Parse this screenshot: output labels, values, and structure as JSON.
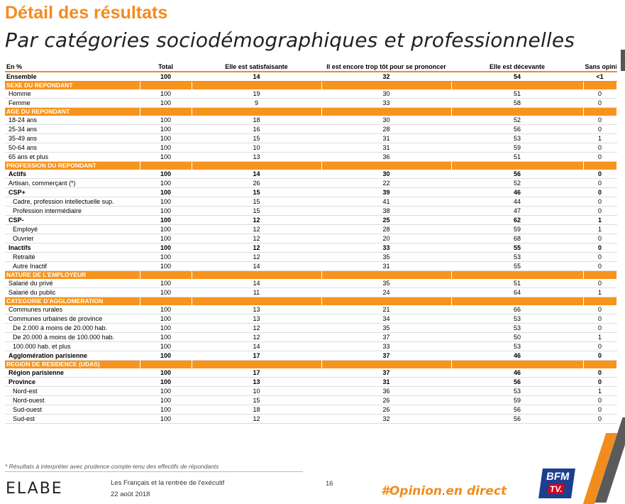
{
  "header": {
    "title": "Détail des résultats",
    "subtitle": "Par catégories sociodémographiques et professionnelles"
  },
  "table": {
    "columns": [
      "En %",
      "Total",
      "Elle est satisfaisante",
      "Il est encore trop tôt pour se prononcer",
      "Elle est décevante",
      "Sans opinion"
    ],
    "ensemble": {
      "label": "Ensemble",
      "values": [
        "100",
        "14",
        "32",
        "54",
        "<1"
      ]
    },
    "sections": [
      {
        "title": "SEXE DU REPONDANT",
        "rows": [
          {
            "label": "Homme",
            "values": [
              "100",
              "19",
              "30",
              "51",
              "0"
            ],
            "indent": 1,
            "bold": false
          },
          {
            "label": "Femme",
            "values": [
              "100",
              "9",
              "33",
              "58",
              "0"
            ],
            "indent": 1,
            "bold": false
          }
        ]
      },
      {
        "title": "AGE DU REPONDANT",
        "rows": [
          {
            "label": "18-24 ans",
            "values": [
              "100",
              "18",
              "30",
              "52",
              "0"
            ],
            "indent": 1,
            "bold": false
          },
          {
            "label": "25-34 ans",
            "values": [
              "100",
              "16",
              "28",
              "56",
              "0"
            ],
            "indent": 1,
            "bold": false
          },
          {
            "label": "35-49 ans",
            "values": [
              "100",
              "15",
              "31",
              "53",
              "1"
            ],
            "indent": 1,
            "bold": false
          },
          {
            "label": "50-64 ans",
            "values": [
              "100",
              "10",
              "31",
              "59",
              "0"
            ],
            "indent": 1,
            "bold": false
          },
          {
            "label": "65 ans et plus",
            "values": [
              "100",
              "13",
              "36",
              "51",
              "0"
            ],
            "indent": 1,
            "bold": false
          }
        ]
      },
      {
        "title": "PROFESSION DU REPONDANT",
        "rows": [
          {
            "label": "Actifs",
            "values": [
              "100",
              "14",
              "30",
              "56",
              "0"
            ],
            "indent": 1,
            "bold": true
          },
          {
            "label": "Artisan, commerçant (*)",
            "values": [
              "100",
              "26",
              "22",
              "52",
              "0"
            ],
            "indent": 1,
            "bold": false
          },
          {
            "label": "CSP+",
            "values": [
              "100",
              "15",
              "39",
              "46",
              "0"
            ],
            "indent": 1,
            "bold": true
          },
          {
            "label": "Cadre, profession intellectuelle sup.",
            "values": [
              "100",
              "15",
              "41",
              "44",
              "0"
            ],
            "indent": 2,
            "bold": false
          },
          {
            "label": "Profession intermédiaire",
            "values": [
              "100",
              "15",
              "38",
              "47",
              "0"
            ],
            "indent": 2,
            "bold": false
          },
          {
            "label": "CSP-",
            "values": [
              "100",
              "12",
              "25",
              "62",
              "1"
            ],
            "indent": 1,
            "bold": true
          },
          {
            "label": "Employé",
            "values": [
              "100",
              "12",
              "28",
              "59",
              "1"
            ],
            "indent": 2,
            "bold": false
          },
          {
            "label": "Ouvrier",
            "values": [
              "100",
              "12",
              "20",
              "68",
              "0"
            ],
            "indent": 2,
            "bold": false
          },
          {
            "label": "Inactifs",
            "values": [
              "100",
              "12",
              "33",
              "55",
              "0"
            ],
            "indent": 1,
            "bold": true
          },
          {
            "label": "Retraité",
            "values": [
              "100",
              "12",
              "35",
              "53",
              "0"
            ],
            "indent": 2,
            "bold": false
          },
          {
            "label": "Autre Inactif",
            "values": [
              "100",
              "14",
              "31",
              "55",
              "0"
            ],
            "indent": 2,
            "bold": false
          }
        ]
      },
      {
        "title": "NATURE DE L'EMPLOYEUR",
        "rows": [
          {
            "label": "Salarié du privé",
            "values": [
              "100",
              "14",
              "35",
              "51",
              "0"
            ],
            "indent": 1,
            "bold": false
          },
          {
            "label": "Salarié du public",
            "values": [
              "100",
              "11",
              "24",
              "64",
              "1"
            ],
            "indent": 1,
            "bold": false
          }
        ]
      },
      {
        "title": "CATEGORIE D'AGGLOMERATION",
        "rows": [
          {
            "label": "Communes rurales",
            "values": [
              "100",
              "13",
              "21",
              "66",
              "0"
            ],
            "indent": 1,
            "bold": false
          },
          {
            "label": "Communes urbaines de province",
            "values": [
              "100",
              "13",
              "34",
              "53",
              "0"
            ],
            "indent": 1,
            "bold": false
          },
          {
            "label": "De 2.000 à moins de 20.000 hab.",
            "values": [
              "100",
              "12",
              "35",
              "53",
              "0"
            ],
            "indent": 2,
            "bold": false
          },
          {
            "label": "De 20.000 à moins de 100.000 hab.",
            "values": [
              "100",
              "12",
              "37",
              "50",
              "1"
            ],
            "indent": 2,
            "bold": false
          },
          {
            "label": "100.000 hab. et plus",
            "values": [
              "100",
              "14",
              "33",
              "53",
              "0"
            ],
            "indent": 2,
            "bold": false
          },
          {
            "label": "Agglomération parisienne",
            "values": [
              "100",
              "17",
              "37",
              "46",
              "0"
            ],
            "indent": 1,
            "bold": true
          }
        ]
      },
      {
        "title": "REGION DE RESIDENCE (UDAS)",
        "rows": [
          {
            "label": "Région parisienne",
            "values": [
              "100",
              "17",
              "37",
              "46",
              "0"
            ],
            "indent": 1,
            "bold": true
          },
          {
            "label": "Province",
            "values": [
              "100",
              "13",
              "31",
              "56",
              "0"
            ],
            "indent": 1,
            "bold": true
          },
          {
            "label": "Nord-est",
            "values": [
              "100",
              "10",
              "36",
              "53",
              "1"
            ],
            "indent": 2,
            "bold": false
          },
          {
            "label": "Nord-ouest",
            "values": [
              "100",
              "15",
              "26",
              "59",
              "0"
            ],
            "indent": 2,
            "bold": false
          },
          {
            "label": "Sud-ouest",
            "values": [
              "100",
              "18",
              "26",
              "56",
              "0"
            ],
            "indent": 2,
            "bold": false
          },
          {
            "label": "Sud-est",
            "values": [
              "100",
              "12",
              "32",
              "56",
              "0"
            ],
            "indent": 2,
            "bold": false
          }
        ]
      }
    ]
  },
  "footnote": "* Résultats à interpréter avec prudence compte-tenu des effectifs de répondants",
  "footer": {
    "logo": "ELABE",
    "study_title": "Les Français et la rentrée de l'exécutif",
    "date": "22 août 2018",
    "page_number": "16",
    "hashtag_main": "#Opinion",
    "hashtag_sep": ".",
    "hashtag_end": "en direct",
    "bfm_top": "BFM",
    "bfm_bottom": "TV."
  },
  "colors": {
    "accent": "#f28c1e",
    "section_bg": "#f7941d",
    "bfm_blue": "#1d3f8f",
    "bfm_red": "#d8001c"
  }
}
